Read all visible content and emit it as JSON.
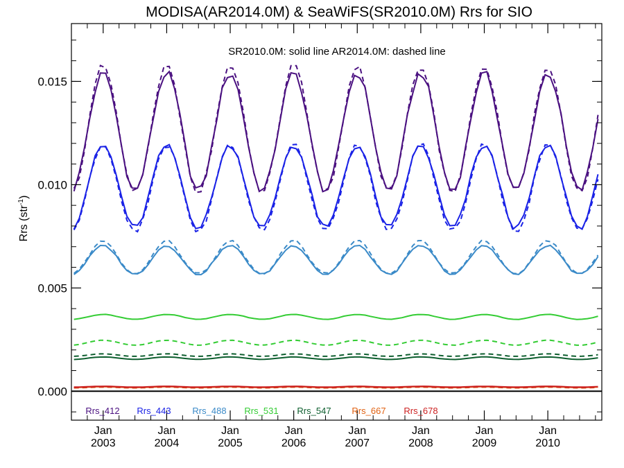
{
  "chart_data": {
    "type": "line",
    "title": "MODISA(AR2014.0M) & SeaWiFS(SR2010.0M)  Rrs for SIO",
    "subtitle": "SR2010.0M: solid line   AR2014.0M: dashed line",
    "ylabel": "Rrs (str",
    "ylabel_sup": "-1",
    "ylabel_close": ")",
    "xlabel": "",
    "ylim": [
      -0.0014,
      0.0178
    ],
    "xlim": [
      2002.5,
      2010.85
    ],
    "yticks": [
      {
        "value": 0.0,
        "label": "0.000"
      },
      {
        "value": 0.005,
        "label": "0.005"
      },
      {
        "value": 0.01,
        "label": "0.010"
      },
      {
        "value": 0.015,
        "label": "0.015"
      }
    ],
    "xticks": [
      {
        "value": 2003.0,
        "top": "Jan",
        "bottom": "2003"
      },
      {
        "value": 2004.0,
        "top": "Jan",
        "bottom": "2004"
      },
      {
        "value": 2005.0,
        "top": "Jan",
        "bottom": "2005"
      },
      {
        "value": 2006.0,
        "top": "Jan",
        "bottom": "2006"
      },
      {
        "value": 2007.0,
        "top": "Jan",
        "bottom": "2007"
      },
      {
        "value": 2008.0,
        "top": "Jan",
        "bottom": "2008"
      },
      {
        "value": 2009.0,
        "top": "Jan",
        "bottom": "2009"
      },
      {
        "value": 2010.0,
        "top": "Jan",
        "bottom": "2010"
      }
    ],
    "zero_line": true,
    "grid": false,
    "legend_position": "bottom-inside",
    "line_styles": {
      "SeaWiFS": "solid",
      "MODISA": "dashed"
    },
    "series": [
      {
        "name": "Rrs_412",
        "color": "#4a1080",
        "amplitude": 0.00285,
        "seawifs_mean": 0.01255,
        "modisa_mean": 0.0125,
        "modisa_offset": 0.0004
      },
      {
        "name": "Rrs_443",
        "color": "#1a22e6",
        "amplitude": 0.002,
        "seawifs_mean": 0.0099,
        "modisa_mean": 0.00975,
        "modisa_offset": 0.0002
      },
      {
        "name": "Rrs_488",
        "color": "#3a8ac8",
        "amplitude": 0.0007,
        "seawifs_mean": 0.00635,
        "modisa_mean": 0.0064,
        "modisa_offset": 0.0002
      },
      {
        "name": "Rrs_531",
        "color": "#33cc33",
        "amplitude": 0.00012,
        "seawifs_mean": 0.0036,
        "modisa_mean": 0.00235,
        "modisa_offset": 0.0
      },
      {
        "name": "Rrs_547",
        "color": "#0d5e2e",
        "amplitude": 6e-05,
        "seawifs_mean": 0.0016,
        "modisa_mean": 0.00175,
        "modisa_offset": 0.0
      },
      {
        "name": "Rrs_667",
        "color": "#e06010",
        "amplitude": 2e-05,
        "seawifs_mean": 0.0002,
        "modisa_mean": 0.00018,
        "modisa_offset": 0.0
      },
      {
        "name": "Rrs_678",
        "color": "#cc2020",
        "amplitude": 2e-05,
        "seawifs_mean": 0.00022,
        "modisa_mean": 0.0002,
        "modisa_offset": 0.0
      }
    ]
  }
}
